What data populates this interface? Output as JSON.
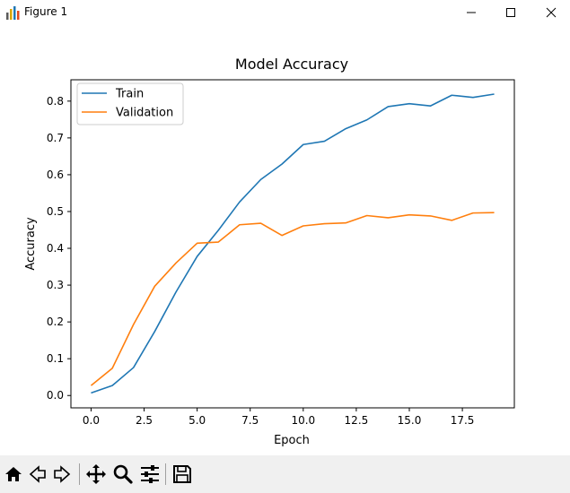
{
  "window": {
    "title": "Figure 1",
    "app_icon": "matplotlib-figure-icon",
    "controls": [
      "minimize-icon",
      "maximize-icon",
      "close-icon"
    ]
  },
  "toolbar": {
    "buttons": [
      "home-icon",
      "back-arrow-icon",
      "forward-arrow-icon",
      "pan-move-icon",
      "zoom-magnifier-icon",
      "configure-subplots-icon",
      "save-floppy-icon"
    ]
  },
  "chart_data": {
    "type": "line",
    "title": "Model Accuracy",
    "xlabel": "Epoch",
    "ylabel": "Accuracy",
    "x": [
      0,
      1,
      2,
      3,
      4,
      5,
      6,
      7,
      8,
      9,
      10,
      11,
      12,
      13,
      14,
      15,
      16,
      17,
      18,
      19
    ],
    "xlim": [
      -0.95,
      19.95
    ],
    "ylim": [
      -0.0335,
      0.858
    ],
    "xticks": [
      0.0,
      2.5,
      5.0,
      7.5,
      10.0,
      12.5,
      15.0,
      17.5
    ],
    "xtick_labels": [
      "0.0",
      "2.5",
      "5.0",
      "7.5",
      "10.0",
      "12.5",
      "15.0",
      "17.5"
    ],
    "yticks": [
      0.0,
      0.1,
      0.2,
      0.3,
      0.4,
      0.5,
      0.6,
      0.7,
      0.8
    ],
    "ytick_labels": [
      "0.0",
      "0.1",
      "0.2",
      "0.3",
      "0.4",
      "0.5",
      "0.6",
      "0.7",
      "0.8"
    ],
    "grid": false,
    "legend_position": "top-left",
    "series": [
      {
        "name": "Train",
        "color": "#1f77b4",
        "values": [
          0.007,
          0.027,
          0.076,
          0.174,
          0.281,
          0.378,
          0.449,
          0.526,
          0.587,
          0.629,
          0.682,
          0.691,
          0.725,
          0.749,
          0.785,
          0.793,
          0.787,
          0.816,
          0.81,
          0.819
        ]
      },
      {
        "name": "Validation",
        "color": "#ff7f0e",
        "values": [
          0.027,
          0.074,
          0.193,
          0.297,
          0.36,
          0.414,
          0.417,
          0.464,
          0.468,
          0.435,
          0.461,
          0.467,
          0.469,
          0.489,
          0.483,
          0.491,
          0.488,
          0.476,
          0.496,
          0.497
        ]
      }
    ]
  }
}
